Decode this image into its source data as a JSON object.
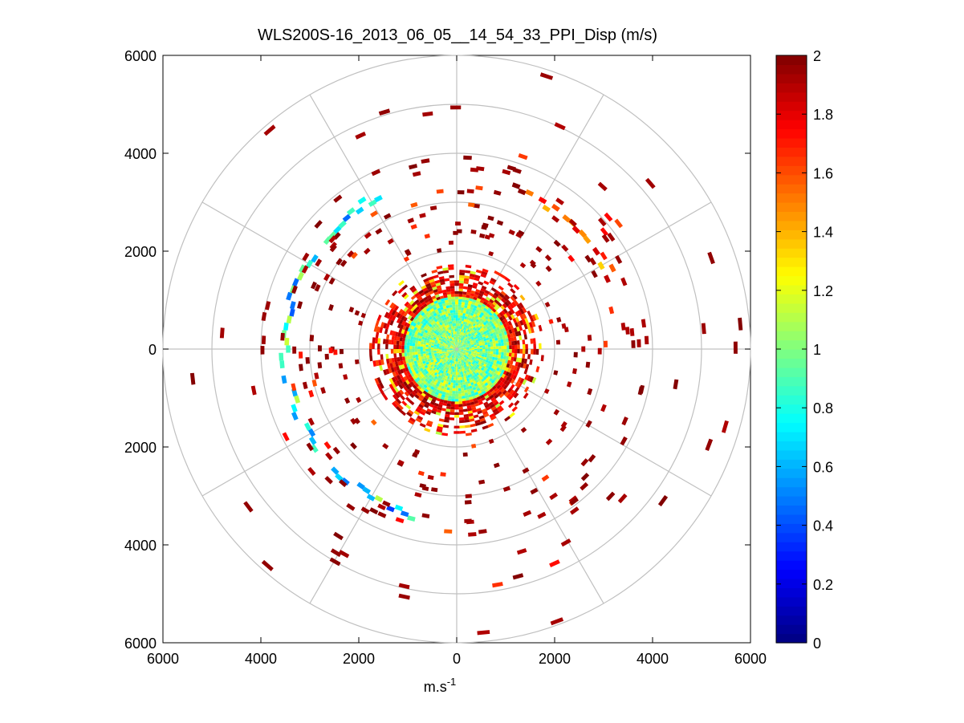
{
  "chart_data": {
    "type": "heatmap",
    "subtype": "polar-ppi",
    "title": "WLS200S-16_2013_06_05__14_54_33_PPI_Disp (m/s)",
    "xlabel": "m.s",
    "xlabel_superscript": "-1",
    "ylabel": "",
    "xlim": [
      -6000,
      6000
    ],
    "ylim": [
      -6000,
      6000
    ],
    "x_ticks": [
      -6000,
      -4000,
      -2000,
      0,
      2000,
      4000,
      6000
    ],
    "y_ticks": [
      -6000,
      -4000,
      -2000,
      0,
      2000,
      4000,
      6000
    ],
    "x_tick_labels": [
      "6000",
      "4000",
      "2000",
      "0",
      "2000",
      "4000",
      "6000"
    ],
    "y_tick_labels": [
      "6000",
      "4000",
      "2000",
      "0",
      "2000",
      "4000",
      "6000"
    ],
    "polar_rings": [
      1000,
      2000,
      3000,
      4000,
      5000,
      6000
    ],
    "polar_spokes_deg": [
      0,
      30,
      60,
      90,
      120,
      150,
      180,
      210,
      240,
      270,
      300,
      330
    ],
    "colorbar": {
      "range": [
        0,
        2
      ],
      "ticks": [
        0,
        0.2,
        0.4,
        0.6,
        0.8,
        1,
        1.2,
        1.4,
        1.6,
        1.8,
        2
      ],
      "tick_labels": [
        "0",
        "0.2",
        "0.4",
        "0.6",
        "0.8",
        "1",
        "1.2",
        "1.4",
        "1.6",
        "1.8",
        "2"
      ],
      "colormap": "jet"
    },
    "regions": [
      {
        "name": "near-field disc",
        "r_range": [
          0,
          1100
        ],
        "az_range": [
          0,
          360
        ],
        "value_mean": 1.0,
        "value_spread": 0.25
      },
      {
        "name": "near-field rim",
        "r_range": [
          1100,
          1800
        ],
        "az_range": [
          0,
          360
        ],
        "value_mean": 1.8,
        "value_spread": 0.2
      },
      {
        "name": "west arc",
        "r_range": [
          3400,
          3600
        ],
        "az_range": [
          195,
          335
        ],
        "value_mean": 0.75,
        "value_spread": 0.4
      },
      {
        "name": "north-east arc",
        "r_range": [
          3350,
          3600
        ],
        "az_range": [
          20,
          70
        ],
        "value_mean": 1.6,
        "value_spread": 0.4
      },
      {
        "name": "scattered returns",
        "r_range": [
          2000,
          6000
        ],
        "az_range": [
          0,
          360
        ],
        "value_mean": 1.95,
        "value_spread": 0.05
      }
    ]
  }
}
